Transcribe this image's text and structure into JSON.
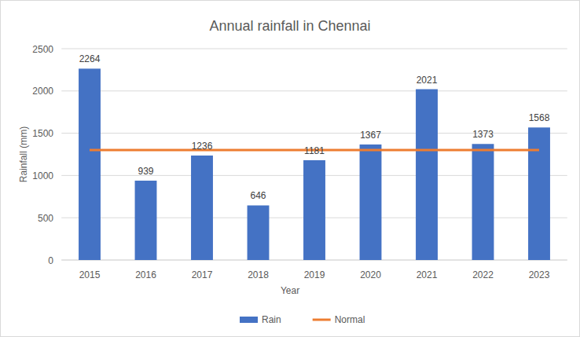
{
  "chart_data": {
    "type": "bar",
    "title": "Annual rainfall in Chennai",
    "x_label": "Year",
    "y_label": "Rainfall (mm)",
    "categories": [
      "2015",
      "2016",
      "2017",
      "2018",
      "2019",
      "2020",
      "2021",
      "2022",
      "2023"
    ],
    "series": [
      {
        "name": "Rain",
        "type": "bar",
        "color": "#4472c4",
        "data_labels": true,
        "values": [
          2264,
          939,
          1236,
          646,
          1181,
          1367,
          2021,
          1373,
          1568
        ]
      },
      {
        "name": "Normal",
        "type": "line",
        "color": "#ed7d31",
        "values": [
          1300,
          1300,
          1300,
          1300,
          1300,
          1300,
          1300,
          1300,
          1300
        ]
      }
    ],
    "ylim": [
      0,
      2500
    ],
    "yticks": [
      0,
      500,
      1000,
      1500,
      2000,
      2500
    ],
    "grid": true,
    "legend": "bottom"
  }
}
